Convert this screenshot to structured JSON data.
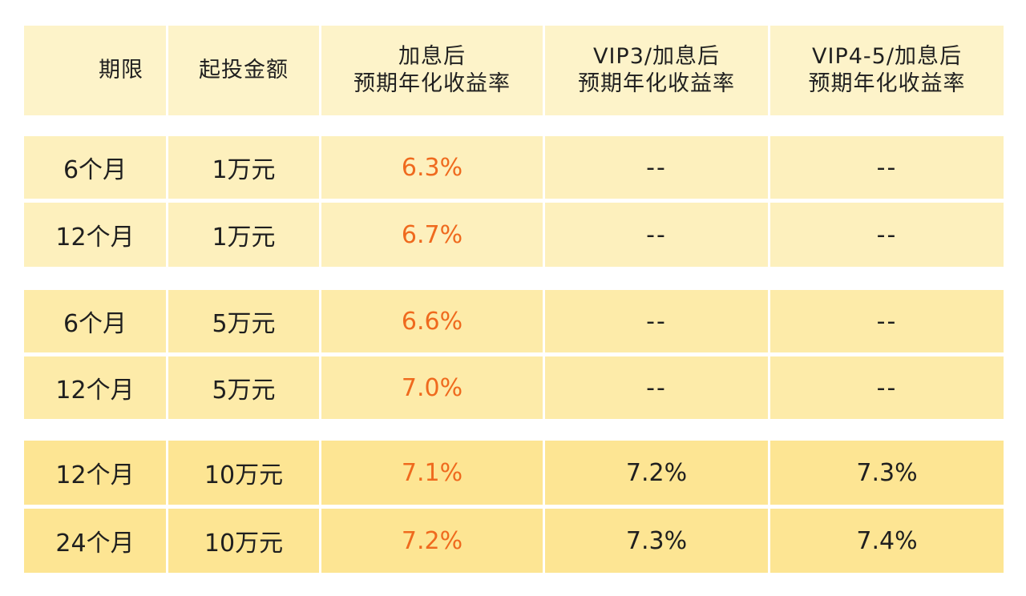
{
  "header": {
    "term": "期限",
    "min_amount": "起投金额",
    "rate_after_bonus_l1": "加息后",
    "rate_after_bonus_l2": "预期年化收益率",
    "vip3_l1": "VIP3/加息后",
    "vip3_l2": "预期年化收益率",
    "vip45_l1": "VIP4-5/加息后",
    "vip45_l2": "预期年化收益率"
  },
  "rows": [
    {
      "term": "6个月",
      "amount": "1万元",
      "rate": "6.3%",
      "vip3": "--",
      "vip45": "--"
    },
    {
      "term": "12个月",
      "amount": "1万元",
      "rate": "6.7%",
      "vip3": "--",
      "vip45": "--"
    },
    {
      "term": "6个月",
      "amount": "5万元",
      "rate": "6.6%",
      "vip3": "--",
      "vip45": "--"
    },
    {
      "term": "12个月",
      "amount": "5万元",
      "rate": "7.0%",
      "vip3": "--",
      "vip45": "--"
    },
    {
      "term": "12个月",
      "amount": "10万元",
      "rate": "7.1%",
      "vip3": "7.2%",
      "vip45": "7.3%"
    },
    {
      "term": "24个月",
      "amount": "10万元",
      "rate": "7.2%",
      "vip3": "7.3%",
      "vip45": "7.4%"
    }
  ],
  "colors": {
    "rate_accent": "#ef6a1e",
    "header_bg": "#fdf3c9",
    "group1_bg": "#fdf0bd",
    "group2_bg": "#fdeba9",
    "group3_bg": "#fde593"
  }
}
